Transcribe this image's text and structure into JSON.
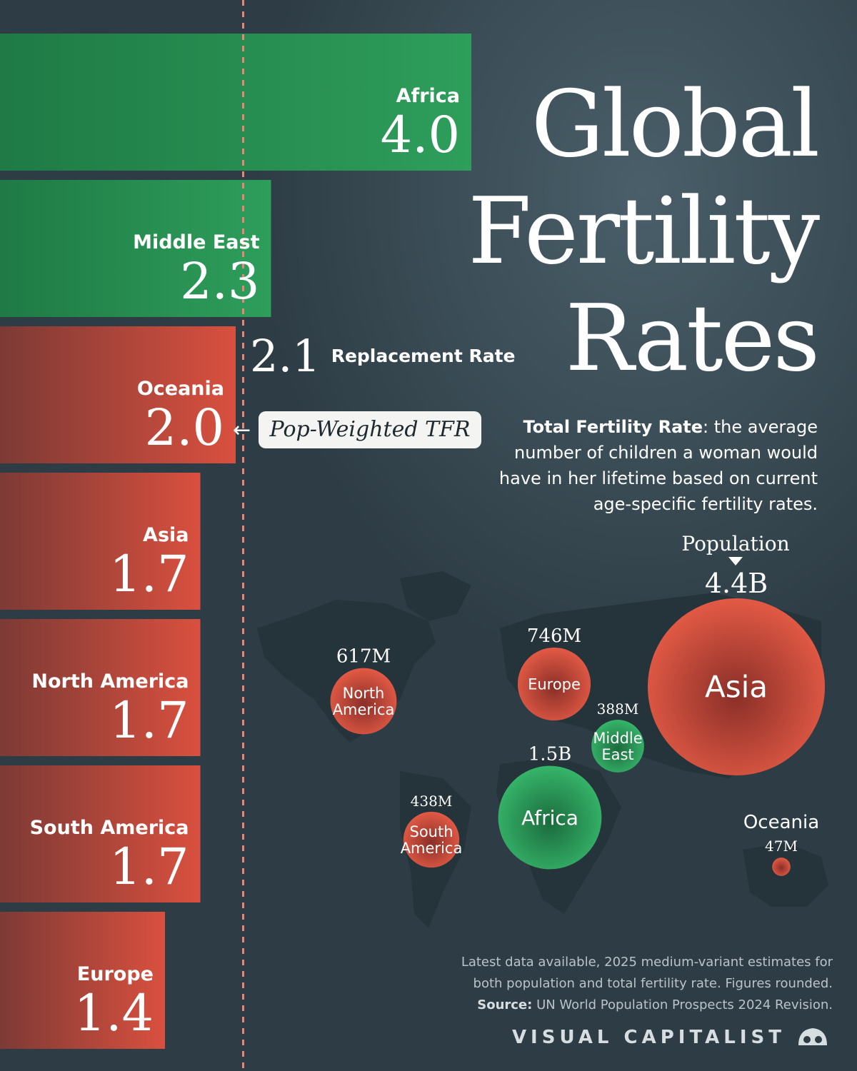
{
  "title": {
    "line1": "Global",
    "line2": "Fertility",
    "line3": "Rates"
  },
  "description": {
    "term": "Total Fertility Rate",
    "definition": ": the average number of children a woman would have in her lifetime based on current age-specific fertility rates."
  },
  "replacement": {
    "value": "2.1",
    "label": "Replacement Rate"
  },
  "pop_weighted": {
    "label": "Pop-Weighted TFR",
    "arrow": "←"
  },
  "population_header": "Population",
  "footnote": {
    "line1": "Latest data available, 2025 medium-variant estimates for",
    "line2": "both population and total fertility rate. Figures rounded.",
    "source_label": "Source:",
    "source_text": " UN World Population Prospects 2024 Revision."
  },
  "brand": "VISUAL CAPITALIST",
  "colors": {
    "above_replacement": "#2e9e5b",
    "below_replacement": "#d9503f",
    "background": "#2e3d45",
    "dashed_line": "#e8857a"
  },
  "chart_data": [
    {
      "type": "bar",
      "orientation": "horizontal",
      "categories": [
        "Africa",
        "Middle East",
        "Oceania",
        "Asia",
        "North America",
        "South America",
        "Europe"
      ],
      "values": [
        4.0,
        2.3,
        2.0,
        1.7,
        1.7,
        1.7,
        1.4
      ],
      "value_labels": [
        "4.0",
        "2.3",
        "2.0",
        "1.7",
        "1.7",
        "1.7",
        "1.4"
      ],
      "reference_line": {
        "value": 2.1
      },
      "xlim": [
        0,
        4.0
      ]
    },
    {
      "type": "scatter",
      "map": "world",
      "categories": [
        "Asia",
        "Africa",
        "Europe",
        "North America",
        "South America",
        "Middle East",
        "Oceania"
      ],
      "populations_millions": [
        4400,
        1500,
        746,
        617,
        438,
        388,
        47
      ],
      "population_labels": [
        "4.4B",
        "1.5B",
        "746M",
        "617M",
        "438M",
        "388M",
        "47M"
      ],
      "above_replacement": [
        false,
        true,
        false,
        false,
        false,
        true,
        false
      ]
    }
  ]
}
